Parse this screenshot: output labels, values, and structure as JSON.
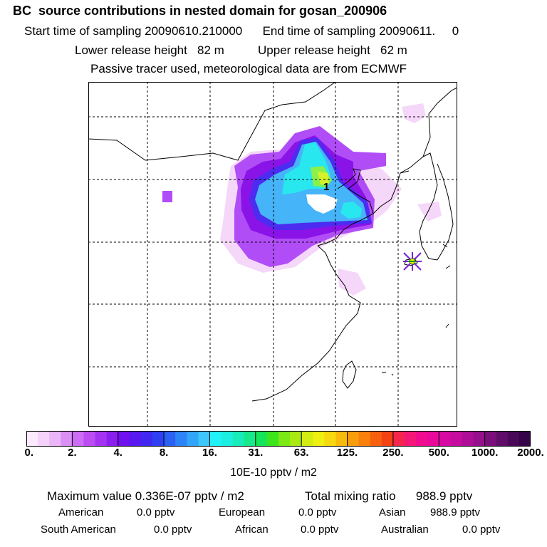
{
  "header": {
    "title": "BC  source contributions in nested domain for gosan_200906",
    "start_label": "Start time of sampling",
    "start_value": "20090610.210000",
    "end_label": "End time of sampling",
    "end_value": "20090611.     0",
    "lower_label": "Lower release height",
    "lower_value": "82 m",
    "upper_label": "Upper release height",
    "upper_value": "62 m",
    "note": "Passive tracer used, meteorological data are from ECMWF"
  },
  "map": {
    "release_marker_label": "1",
    "receptor_marker": "star",
    "grid": true,
    "colors": {
      "light_pink": "#f5d7f9",
      "violet": "#b14df7",
      "purple": "#8a13e8",
      "blue": "#4b2cf0",
      "sky": "#46b4f9",
      "cyan": "#28e7ee",
      "green": "#8cf04b",
      "yellow_green": "#d7f22a"
    }
  },
  "colorbar": {
    "tick_labels": [
      "0.",
      "2.",
      "4.",
      "8.",
      "16.",
      "31.",
      "63.",
      "125.",
      "250.",
      "500.",
      "1000.",
      "2000."
    ],
    "colors": [
      "#fbe9fd",
      "#f4d2f9",
      "#eab6f8",
      "#da8ff5",
      "#cd6cf4",
      "#bb4df3",
      "#a534f2",
      "#8a1ff0",
      "#7010ee",
      "#5818ef",
      "#4128f1",
      "#2f40f3",
      "#2b62f4",
      "#2c84f6",
      "#31a5f8",
      "#3cc6fa",
      "#20f2f7",
      "#1cefe1",
      "#19ecb8",
      "#17e88a",
      "#15e55a",
      "#3ce51c",
      "#7ce815",
      "#a9ea12",
      "#d3ec12",
      "#eef011",
      "#f7d90f",
      "#f8bb0d",
      "#f89d0c",
      "#f8800b",
      "#f7610e",
      "#f54213",
      "#f5264b",
      "#f51777",
      "#f00b8f",
      "#e8089a",
      "#d809a2",
      "#c50c9f",
      "#ae0e97",
      "#95108a",
      "#7a0f7b",
      "#600c69",
      "#4a0858",
      "#360448"
    ],
    "units": "10E-10 pptv / m2"
  },
  "stats": {
    "max_label": "Maximum value",
    "max_value": "0.336E-07 pptv / m2",
    "total_label": "Total mixing ratio",
    "total_value": "988.9 pptv",
    "regions": [
      {
        "name": "American",
        "value": "0.0 pptv"
      },
      {
        "name": "European",
        "value": "0.0 pptv"
      },
      {
        "name": "Asian",
        "value": "988.9 pptv"
      },
      {
        "name": "South American",
        "value": "0.0 pptv"
      },
      {
        "name": "African",
        "value": "0.0 pptv"
      },
      {
        "name": "Australian",
        "value": "0.0 pptv"
      }
    ]
  }
}
